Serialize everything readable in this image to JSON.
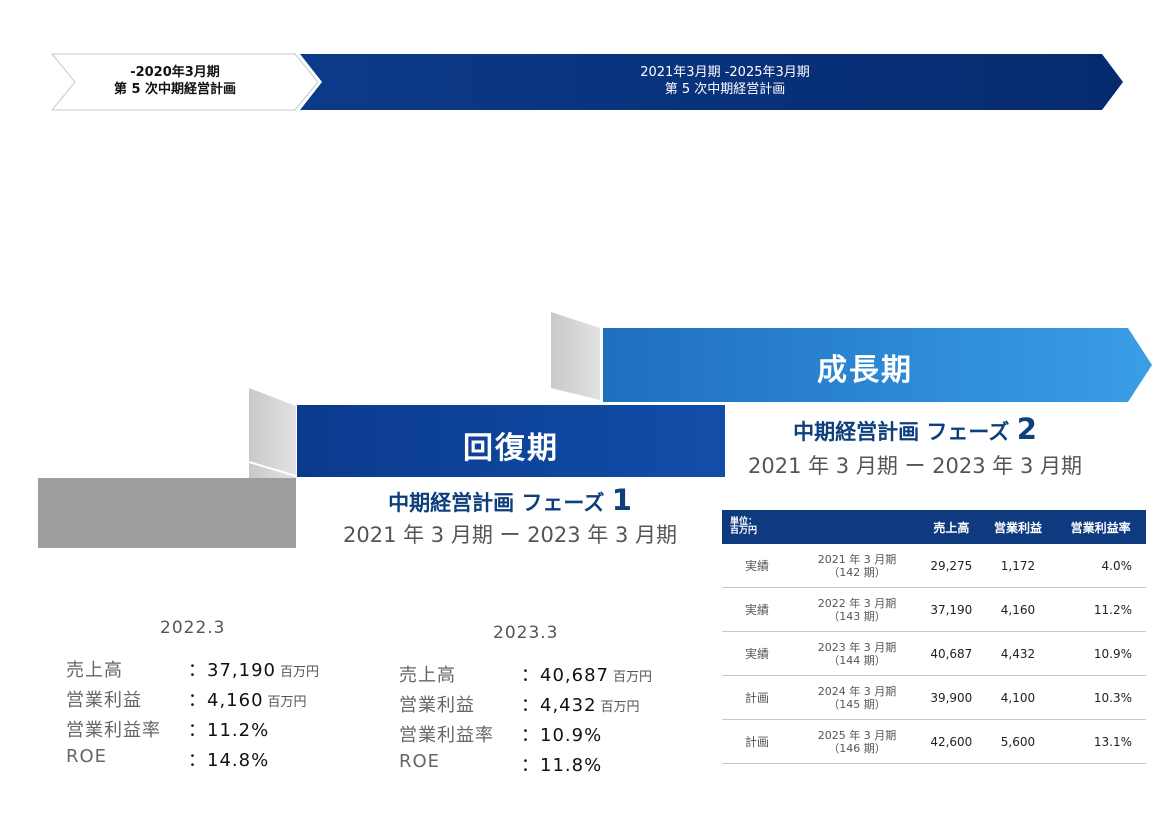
{
  "top_timeline": {
    "plan_prev": {
      "line1": "-2020年3月期",
      "line2": "第 5 次中期経営計画"
    },
    "plan_current": {
      "line1": "2021年3月期 -2025年3月期",
      "line2": "第 5 次中期経営計画"
    }
  },
  "phases": {
    "growth": {
      "label": "成長期",
      "title": "中期経営計画 フェーズ",
      "number": "2",
      "period": "2021 年 3 月期 ー 2023 年 3 月期"
    },
    "recovery": {
      "label": "回復期",
      "title": "中期経営計画 フェーズ",
      "number": "1",
      "period": "2021 年 3 月期 ー 2023 年 3 月期"
    }
  },
  "results": [
    {
      "year": "2022.3",
      "rows": [
        {
          "label": "売上高",
          "value": "：37,190",
          "unit": "百万円"
        },
        {
          "label": "営業利益",
          "value": "：4,160",
          "unit": "百万円"
        },
        {
          "label": "営業利益率",
          "value": "：11.2%",
          "unit": ""
        },
        {
          "label": "ROE",
          "value": "：14.8%",
          "unit": ""
        }
      ]
    },
    {
      "year": "2023.3",
      "rows": [
        {
          "label": "売上高",
          "value": "：40,687",
          "unit": "百万円"
        },
        {
          "label": "営業利益",
          "value": "：4,432",
          "unit": "百万円"
        },
        {
          "label": "営業利益率",
          "value": "：10.9%",
          "unit": ""
        },
        {
          "label": "ROE",
          "value": "：11.8%",
          "unit": ""
        }
      ]
    }
  ],
  "colors": {
    "navy": "#0a2f7a",
    "blue": "#0d4ea3",
    "light_blue": "#2f8fd8",
    "gray": "#9e9e9e",
    "light_gray": "#d0d0d0"
  },
  "chart_data": {
    "type": "table",
    "title": "",
    "unit_label_line1": "単位：",
    "unit_label_line2": "百万円",
    "columns": [
      "売上高",
      "営業利益",
      "営業利益率"
    ],
    "rows": [
      {
        "kind": "実績",
        "period_line1": "2021 年 3 月期",
        "period_line2": "（142 期）",
        "sales": "29,275",
        "operating_profit": "1,172",
        "margin": "4.0%"
      },
      {
        "kind": "実績",
        "period_line1": "2022 年 3 月期",
        "period_line2": "（143 期）",
        "sales": "37,190",
        "operating_profit": "4,160",
        "margin": "11.2%"
      },
      {
        "kind": "実績",
        "period_line1": "2023 年 3 月期",
        "period_line2": "（144 期）",
        "sales": "40,687",
        "operating_profit": "4,432",
        "margin": "10.9%"
      },
      {
        "kind": "計画",
        "period_line1": "2024 年 3 月期",
        "period_line2": "（145 期）",
        "sales": "39,900",
        "operating_profit": "4,100",
        "margin": "10.3%"
      },
      {
        "kind": "計画",
        "period_line1": "2025 年 3 月期",
        "period_line2": "（146 期）",
        "sales": "42,600",
        "operating_profit": "5,600",
        "margin": "13.1%"
      }
    ]
  }
}
